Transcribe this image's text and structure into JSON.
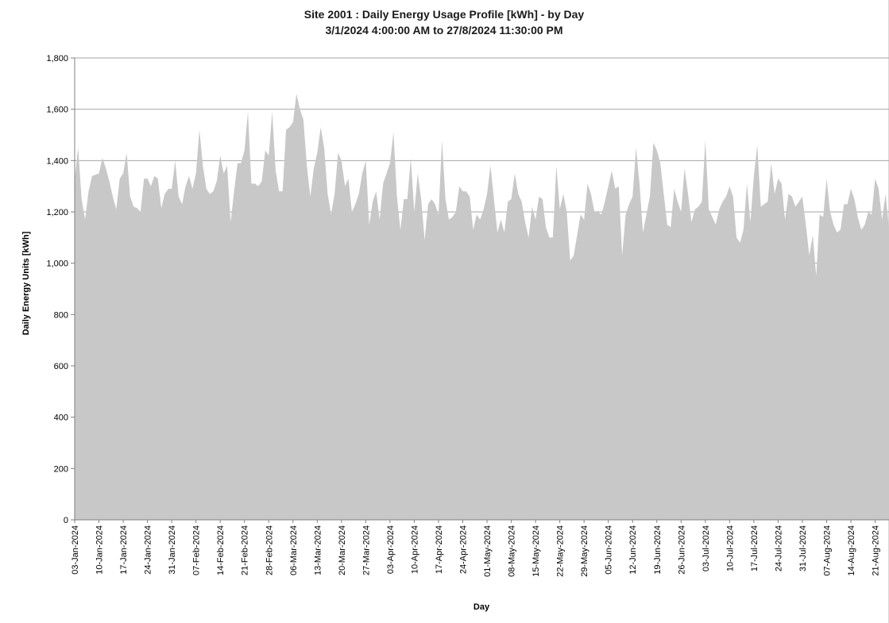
{
  "chart_data": {
    "type": "area",
    "title": "Site 2001 : Daily Energy Usage Profile [kWh] - by Day",
    "subtitle": "3/1/2024 4:00:00 AM to 27/8/2024 11:30:00 PM",
    "xlabel": "Day",
    "ylabel": "Daily Energy Units [kWh]",
    "ylim": [
      0,
      1800
    ],
    "y_ticks": [
      "0",
      "200",
      "400",
      "600",
      "800",
      "1,000",
      "1,200",
      "1,400",
      "1,600",
      "1,800"
    ],
    "grid": "horizontal",
    "legend": "none",
    "fill_color": "#c8c8c8",
    "x_tick_labels": [
      "03-Jan-2024",
      "10-Jan-2024",
      "17-Jan-2024",
      "24-Jan-2024",
      "31-Jan-2024",
      "07-Feb-2024",
      "14-Feb-2024",
      "21-Feb-2024",
      "28-Feb-2024",
      "06-Mar-2024",
      "13-Mar-2024",
      "20-Mar-2024",
      "27-Mar-2024",
      "03-Apr-2024",
      "10-Apr-2024",
      "17-Apr-2024",
      "24-Apr-2024",
      "01-May-2024",
      "08-May-2024",
      "15-May-2024",
      "22-May-2024",
      "29-May-2024",
      "05-Jun-2024",
      "12-Jun-2024",
      "19-Jun-2024",
      "26-Jun-2024",
      "03-Jul-2024",
      "10-Jul-2024",
      "17-Jul-2024",
      "24-Jul-2024",
      "31-Jul-2024",
      "07-Aug-2024",
      "14-Aug-2024",
      "21-Aug-2024"
    ],
    "x_start": "2024-01-03",
    "x_end": "2024-08-27",
    "values": [
      1330,
      1450,
      1250,
      1170,
      1280,
      1340,
      1345,
      1350,
      1410,
      1370,
      1320,
      1260,
      1210,
      1330,
      1350,
      1430,
      1260,
      1220,
      1215,
      1200,
      1330,
      1330,
      1300,
      1340,
      1330,
      1215,
      1270,
      1290,
      1290,
      1400,
      1260,
      1230,
      1300,
      1340,
      1290,
      1350,
      1520,
      1380,
      1290,
      1270,
      1280,
      1320,
      1420,
      1350,
      1380,
      1160,
      1280,
      1390,
      1390,
      1440,
      1590,
      1310,
      1310,
      1300,
      1320,
      1440,
      1420,
      1590,
      1360,
      1280,
      1280,
      1520,
      1530,
      1550,
      1660,
      1600,
      1560,
      1380,
      1260,
      1370,
      1430,
      1530,
      1450,
      1270,
      1190,
      1270,
      1430,
      1400,
      1300,
      1330,
      1200,
      1230,
      1270,
      1350,
      1400,
      1150,
      1240,
      1280,
      1170,
      1310,
      1350,
      1390,
      1510,
      1260,
      1130,
      1250,
      1250,
      1410,
      1200,
      1350,
      1250,
      1090,
      1230,
      1250,
      1230,
      1190,
      1480,
      1250,
      1170,
      1180,
      1200,
      1300,
      1280,
      1280,
      1260,
      1130,
      1190,
      1170,
      1210,
      1270,
      1380,
      1250,
      1120,
      1170,
      1120,
      1240,
      1250,
      1350,
      1270,
      1240,
      1160,
      1100,
      1220,
      1170,
      1260,
      1250,
      1140,
      1100,
      1100,
      1380,
      1210,
      1270,
      1200,
      1010,
      1030,
      1110,
      1190,
      1170,
      1310,
      1270,
      1200,
      1200,
      1190,
      1240,
      1300,
      1360,
      1290,
      1300,
      1030,
      1190,
      1230,
      1260,
      1450,
      1310,
      1120,
      1190,
      1260,
      1470,
      1440,
      1390,
      1270,
      1150,
      1140,
      1290,
      1240,
      1200,
      1370,
      1270,
      1160,
      1210,
      1220,
      1240,
      1480,
      1210,
      1180,
      1150,
      1210,
      1240,
      1260,
      1300,
      1260,
      1100,
      1080,
      1130,
      1310,
      1160,
      1340,
      1460,
      1220,
      1230,
      1240,
      1390,
      1270,
      1330,
      1310,
      1170,
      1270,
      1260,
      1220,
      1240,
      1260,
      1150,
      1030,
      1110,
      950,
      1190,
      1180,
      1330,
      1200,
      1150,
      1120,
      1130,
      1230,
      1230,
      1290,
      1250,
      1180,
      1130,
      1150,
      1200,
      1190,
      1330,
      1290,
      1170,
      1270,
      1140
    ]
  }
}
